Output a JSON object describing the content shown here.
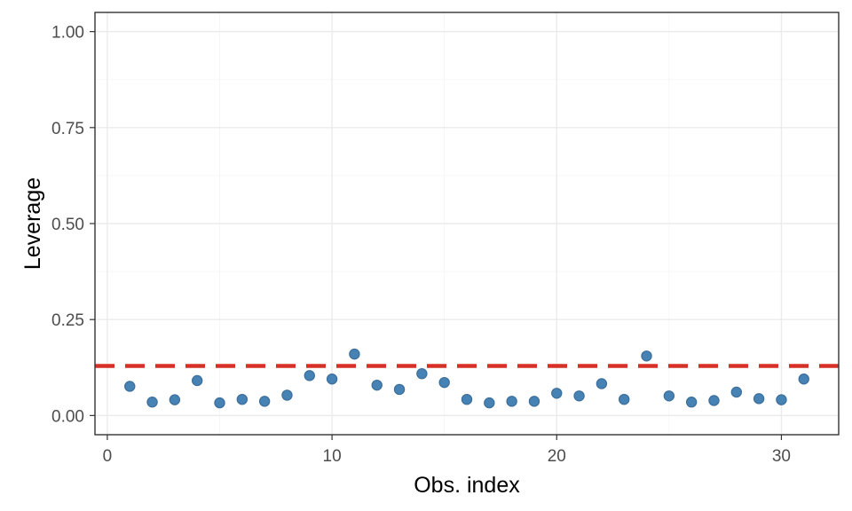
{
  "chart_data": {
    "type": "scatter",
    "title": "",
    "xlabel": "Obs. index",
    "ylabel": "Leverage",
    "xlim": [
      -0.55,
      32.55
    ],
    "ylim": [
      -0.05,
      1.05
    ],
    "x_ticks": [
      0,
      10,
      20,
      30
    ],
    "x_tick_labels": [
      "0",
      "10",
      "20",
      "30"
    ],
    "y_ticks": [
      0,
      0.25,
      0.5,
      0.75,
      1.0
    ],
    "y_tick_labels": [
      "0.00",
      "0.25",
      "0.50",
      "0.75",
      "1.00"
    ],
    "grid": true,
    "threshold": 0.129,
    "threshold_color": "#d73027",
    "point_color": "#4682b4",
    "x": [
      1,
      2,
      3,
      4,
      5,
      6,
      7,
      8,
      9,
      10,
      11,
      12,
      13,
      14,
      15,
      16,
      17,
      18,
      19,
      20,
      21,
      22,
      23,
      24,
      25,
      26,
      27,
      28,
      29,
      30,
      31
    ],
    "y": [
      0.076,
      0.035,
      0.041,
      0.091,
      0.033,
      0.042,
      0.037,
      0.053,
      0.104,
      0.095,
      0.16,
      0.079,
      0.068,
      0.109,
      0.086,
      0.042,
      0.033,
      0.037,
      0.037,
      0.058,
      0.051,
      0.083,
      0.042,
      0.155,
      0.051,
      0.035,
      0.039,
      0.061,
      0.044,
      0.041,
      0.095
    ]
  }
}
